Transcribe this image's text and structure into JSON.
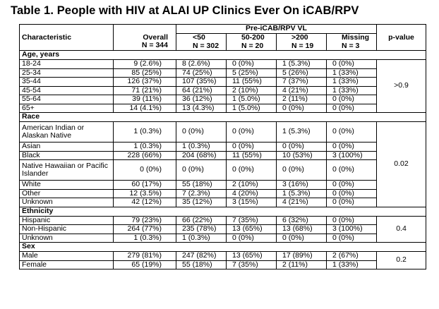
{
  "title": "Table 1. People with HIV at ALAI UP Clinics Ever On iCAB/RPV",
  "header": {
    "group": "Pre-iCAB/RPV VL",
    "characteristic": "Characteristic",
    "overall": [
      "Overall",
      "N = 344"
    ],
    "lt50": [
      "<50",
      "N = 302"
    ],
    "mid": [
      "50-200",
      "N = 20"
    ],
    "gt200": [
      ">200",
      "N = 19"
    ],
    "missing": [
      "Missing",
      "N = 3"
    ],
    "pvalue": "p-value"
  },
  "sections": [
    {
      "name": "Age, years",
      "pvalue": ">0.9",
      "rows": [
        {
          "label": "18-24",
          "vals": [
            "9 (2.6%)",
            "8 (2.6%)",
            "0 (0%)",
            "1 (5.3%)",
            "0 (0%)"
          ]
        },
        {
          "label": "25-34",
          "vals": [
            "85 (25%)",
            "74 (25%)",
            "5 (25%)",
            "5 (26%)",
            "1 (33%)"
          ]
        },
        {
          "label": "35-44",
          "vals": [
            "126 (37%)",
            "107 (35%)",
            "11 (55%)",
            "7 (37%)",
            "1 (33%)"
          ]
        },
        {
          "label": "45-54",
          "vals": [
            "71 (21%)",
            "64 (21%)",
            "2 (10%)",
            "4 (21%)",
            "1 (33%)"
          ]
        },
        {
          "label": "55-64",
          "vals": [
            "39 (11%)",
            "36 (12%)",
            "1 (5.0%)",
            "2 (11%)",
            "0 (0%)"
          ]
        },
        {
          "label": "65+",
          "vals": [
            "14 (4.1%)",
            "13 (4.3%)",
            "1 (5.0%)",
            "0 (0%)",
            "0 (0%)"
          ]
        }
      ]
    },
    {
      "name": "Race",
      "pvalue": "0.02",
      "rows": [
        {
          "label": "American Indian or Alaskan Native",
          "tall": true,
          "vals": [
            "1 (0.3%)",
            "0 (0%)",
            "0 (0%)",
            "1 (5.3%)",
            "0 (0%)"
          ]
        },
        {
          "label": "Asian",
          "vals": [
            "1 (0.3%)",
            "1 (0.3%)",
            "0 (0%)",
            "0 (0%)",
            "0 (0%)"
          ]
        },
        {
          "label": "Black",
          "vals": [
            "228 (66%)",
            "204 (68%)",
            "11 (55%)",
            "10 (53%)",
            "3 (100%)"
          ]
        },
        {
          "label": "Native Hawaiian or Pacific Islander",
          "tall": true,
          "vals": [
            "0 (0%)",
            "0 (0%)",
            "0 (0%)",
            "0 (0%)",
            "0 (0%)"
          ]
        },
        {
          "label": "White",
          "vals": [
            "60 (17%)",
            "55 (18%)",
            "2 (10%)",
            "3 (16%)",
            "0 (0%)"
          ]
        },
        {
          "label": "Other",
          "vals": [
            "12 (3.5%)",
            "7 (2.3%)",
            "4 (20%)",
            "1 (5.3%)",
            "0 (0%)"
          ]
        },
        {
          "label": "Unknown",
          "vals": [
            "42 (12%)",
            "35 (12%)",
            "3 (15%)",
            "4 (21%)",
            "0 (0%)"
          ]
        }
      ]
    },
    {
      "name": "Ethnicity",
      "pvalue": "0.4",
      "rows": [
        {
          "label": "Hispanic",
          "vals": [
            "79 (23%)",
            "66 (22%)",
            "7 (35%)",
            "6 (32%)",
            "0 (0%)"
          ]
        },
        {
          "label": "Non-Hispanic",
          "vals": [
            "264 (77%)",
            "235 (78%)",
            "13 (65%)",
            "13 (68%)",
            "3 (100%)"
          ]
        },
        {
          "label": "Unknown",
          "vals": [
            "1 (0.3%)",
            "1 (0.3%)",
            "0 (0%)",
            "0 (0%)",
            "0 (0%)"
          ]
        }
      ]
    },
    {
      "name": "Sex",
      "pvalue": "0.2",
      "rows": [
        {
          "label": "Male",
          "vals": [
            "279 (81%)",
            "247 (82%)",
            "13 (65%)",
            "17 (89%)",
            "2 (67%)"
          ]
        },
        {
          "label": "Female",
          "vals": [
            "65 (19%)",
            "55 (18%)",
            "7 (35%)",
            "2 (11%)",
            "1 (33%)"
          ]
        }
      ]
    }
  ]
}
